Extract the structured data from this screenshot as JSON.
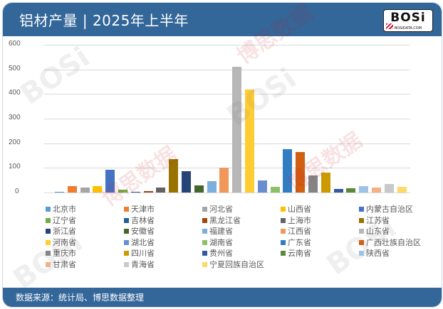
{
  "header": {
    "title": "铝材产量 | 2025年上半年",
    "logo_text": "BOSi",
    "logo_subtext": "BOSIDATA.COM"
  },
  "footer": {
    "source": "数据来源：统计局、博思数据整理"
  },
  "watermark": {
    "brand": "BOSi",
    "cn": "博思数据",
    "en": "BosiData Research"
  },
  "chart_data": {
    "type": "bar",
    "title": "铝材产量 | 2025年上半年",
    "xlabel": "",
    "ylabel": "",
    "ylim": [
      0,
      600
    ],
    "yticks": [
      0,
      100,
      200,
      300,
      400,
      500,
      600
    ],
    "grid": true,
    "legend_position": "bottom",
    "series": [
      {
        "name": "北京市",
        "value": 3,
        "color": "#5b9bd5"
      },
      {
        "name": "天津市",
        "value": 26,
        "color": "#ed7d31"
      },
      {
        "name": "河北省",
        "value": 20,
        "color": "#a5a5a5"
      },
      {
        "name": "山西省",
        "value": 26,
        "color": "#ffc000"
      },
      {
        "name": "内蒙古自治区",
        "value": 92,
        "color": "#4472c4"
      },
      {
        "name": "辽宁省",
        "value": 11,
        "color": "#70ad47"
      },
      {
        "name": "吉林省",
        "value": 3,
        "color": "#255e91"
      },
      {
        "name": "黑龙江省",
        "value": 6,
        "color": "#9e480e"
      },
      {
        "name": "上海市",
        "value": 19,
        "color": "#636363"
      },
      {
        "name": "江苏省",
        "value": 136,
        "color": "#997300"
      },
      {
        "name": "浙江省",
        "value": 87,
        "color": "#264478"
      },
      {
        "name": "安徽省",
        "value": 28,
        "color": "#43682b"
      },
      {
        "name": "福建省",
        "value": 46,
        "color": "#7cafdd"
      },
      {
        "name": "江西省",
        "value": 101,
        "color": "#f1975a"
      },
      {
        "name": "山东省",
        "value": 511,
        "color": "#b7b7b7"
      },
      {
        "name": "河南省",
        "value": 419,
        "color": "#ffcd33"
      },
      {
        "name": "湖北省",
        "value": 49,
        "color": "#698ed0"
      },
      {
        "name": "湖南省",
        "value": 23,
        "color": "#8cc168"
      },
      {
        "name": "广东省",
        "value": 176,
        "color": "#327dc2"
      },
      {
        "name": "广西壮族自治区",
        "value": 165,
        "color": "#d26012"
      },
      {
        "name": "重庆市",
        "value": 68,
        "color": "#848484"
      },
      {
        "name": "四川省",
        "value": 81,
        "color": "#cc9a00"
      },
      {
        "name": "贵州省",
        "value": 14,
        "color": "#335aa1"
      },
      {
        "name": "云南省",
        "value": 17,
        "color": "#5a8a39"
      },
      {
        "name": "陕西省",
        "value": 26,
        "color": "#9dc3e6"
      },
      {
        "name": "甘肃省",
        "value": 20,
        "color": "#f4b183"
      },
      {
        "name": "青海省",
        "value": 34,
        "color": "#c9c9c9"
      },
      {
        "name": "宁夏回族自治区",
        "value": 23,
        "color": "#ffd966"
      }
    ]
  }
}
